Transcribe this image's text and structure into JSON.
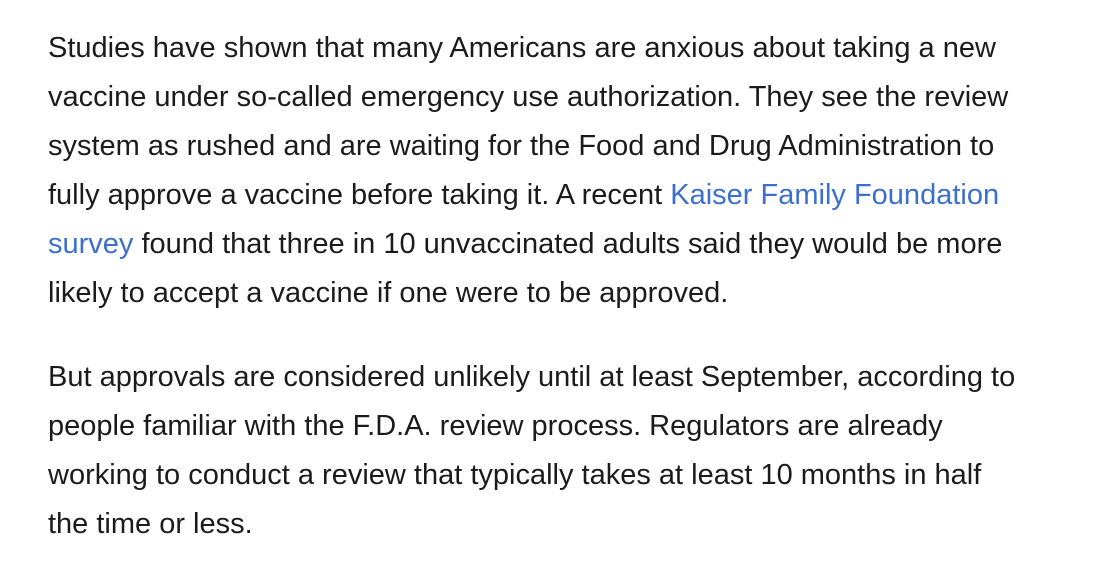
{
  "article": {
    "paragraph_1": {
      "line_1": "Studies have shown that many Americans are anxious about taking a new",
      "line_2": "vaccine under so-called emergency use authorization. They see the review",
      "line_3": "system as rushed and are waiting for the Food and Drug Administration to",
      "line_4_before_link": "fully approve a vaccine before taking it. A recent ",
      "link_part_1": "Kaiser Family Foundation",
      "link_part_2": "survey",
      "line_5_after_link": " found that three in 10 unvaccinated adults said they would be more",
      "line_6": "likely to accept a vaccine if one were to be approved."
    },
    "paragraph_2": {
      "line_1": "But approvals are considered unlikely until at least September, according to",
      "line_2": "people familiar with the F.D.A. review process. Regulators are already",
      "line_3": "working to conduct a review that typically takes at least 10 months in half",
      "line_4": "the time or less."
    }
  },
  "colors": {
    "text": "#1b1b1b",
    "link": "#3b6fd0",
    "background": "#ffffff"
  }
}
